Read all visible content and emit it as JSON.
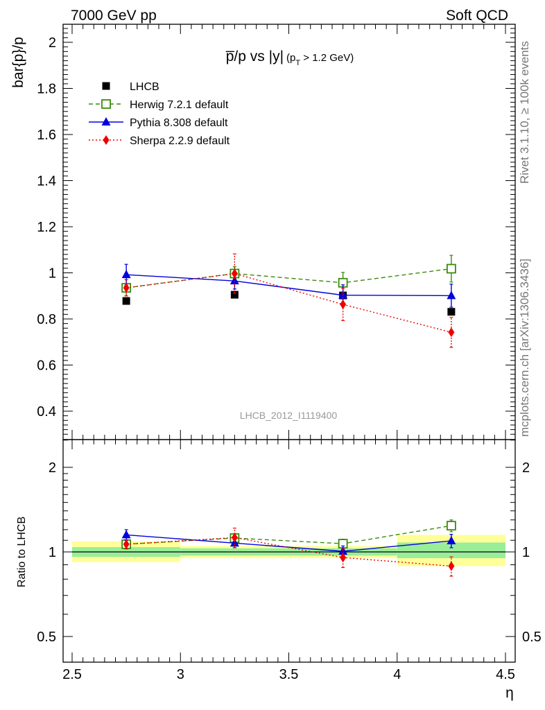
{
  "header": {
    "energy": "7000 GeV pp",
    "process": "Soft QCD"
  },
  "side": {
    "rivet": "Rivet 3.1.10, ≥ 100k events",
    "mcplots": "mcplots.cern.ch [arXiv:1306.3436]"
  },
  "analysis_id": "LHCB_2012_I1119400",
  "plot_title": {
    "main": "p̅/p vs |y|",
    "cut_open": "(p",
    "cut_sub": "T",
    "cut_close": " > 1.2 GeV)"
  },
  "colors": {
    "lhcb": "#000000",
    "herwig": "#3a8a0a",
    "pythia": "#0000dd",
    "sherpa": "#ee0000",
    "band_green": "#99ee99",
    "band_yellow": "#ffff99"
  },
  "chart_data": [
    {
      "type": "line",
      "panel": "main",
      "ylabel": "bar{p}/p",
      "xlim": [
        2.5,
        4.5
      ],
      "ylim": [
        0.3,
        2.08
      ],
      "yticks": [
        0.4,
        0.6,
        0.8,
        1,
        1.2,
        1.4,
        1.6,
        1.8,
        2
      ],
      "ytick_labels": [
        "0.4",
        "0.6",
        "0.8",
        "1",
        "1.2",
        "1.4",
        "1.6",
        "1.8",
        "2"
      ],
      "legend_position": "top-left",
      "x": [
        2.75,
        3.25,
        3.75,
        4.25
      ],
      "series": [
        {
          "name": "LHCB",
          "marker": "filled-square",
          "y": [
            0.878,
            0.905,
            0.902,
            0.831
          ],
          "yerr": [
            0.012,
            0.012,
            0.012,
            0.012
          ]
        },
        {
          "name": "Herwig 7.2.1 default",
          "marker": "open-square",
          "linestyle": "dashed",
          "y": [
            0.935,
            0.997,
            0.957,
            1.018
          ],
          "yerr": [
            0.035,
            0.03,
            0.045,
            0.058
          ]
        },
        {
          "name": "Pythia 8.308 default",
          "marker": "triangle",
          "linestyle": "solid",
          "y": [
            0.992,
            0.965,
            0.903,
            0.901
          ],
          "yerr": [
            0.045,
            0.035,
            0.045,
            0.05
          ]
        },
        {
          "name": "Sherpa 2.2.9 default",
          "marker": "diamond",
          "linestyle": "dotted",
          "y": [
            0.935,
            0.997,
            0.863,
            0.742
          ],
          "yerr": [
            0.035,
            0.085,
            0.07,
            0.065
          ]
        }
      ]
    },
    {
      "type": "line",
      "panel": "ratio",
      "ylabel": "Ratio to LHCB",
      "xlabel": "η",
      "xlim": [
        2.5,
        4.5
      ],
      "ylim": [
        0.4,
        2.7
      ],
      "log_y": true,
      "xticks": [
        2.5,
        3,
        3.5,
        4,
        4.5
      ],
      "xtick_labels": [
        "2.5",
        "3",
        "3.5",
        "4",
        "4.5"
      ],
      "yticks": [
        0.5,
        1,
        2
      ],
      "ytick_labels": [
        "0.5",
        "1",
        "2"
      ],
      "x": [
        2.75,
        3.25,
        3.75,
        4.25
      ],
      "bands": [
        {
          "x": [
            2.5,
            3.0
          ],
          "green": [
            0.96,
            1.04
          ],
          "yellow": [
            0.92,
            1.09
          ]
        },
        {
          "x": [
            3.0,
            4.0
          ],
          "green": [
            0.97,
            1.03
          ],
          "yellow": [
            0.95,
            1.05
          ]
        },
        {
          "x": [
            4.0,
            4.5
          ],
          "green": [
            0.95,
            1.08
          ],
          "yellow": [
            0.89,
            1.15
          ]
        }
      ],
      "series": [
        {
          "name": "Herwig 7.2.1 default",
          "marker": "open-square",
          "linestyle": "dashed",
          "y": [
            1.065,
            1.12,
            1.07,
            1.24
          ],
          "yerr": [
            0.04,
            0.035,
            0.04,
            0.06
          ]
        },
        {
          "name": "Pythia 8.308 default",
          "marker": "triangle",
          "linestyle": "solid",
          "y": [
            1.15,
            1.075,
            1.005,
            1.095
          ],
          "yerr": [
            0.05,
            0.04,
            0.045,
            0.06
          ]
        },
        {
          "name": "Sherpa 2.2.9 default",
          "marker": "diamond",
          "linestyle": "dotted",
          "y": [
            1.065,
            1.125,
            0.955,
            0.89
          ],
          "yerr": [
            0.04,
            0.09,
            0.075,
            0.07
          ]
        }
      ]
    }
  ]
}
